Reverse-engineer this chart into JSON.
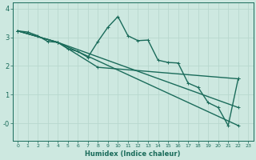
{
  "xlabel": "Humidex (Indice chaleur)",
  "bg_color": "#cde8e0",
  "grid_color": "#b8d8cf",
  "line_color": "#1a6b5a",
  "xlim": [
    -0.5,
    23.5
  ],
  "ylim": [
    -0.6,
    4.2
  ],
  "yticks": [
    0,
    1,
    2,
    3,
    4
  ],
  "ytick_labels": [
    "-0",
    "1",
    "2",
    "3",
    "4"
  ],
  "xticks": [
    0,
    1,
    2,
    3,
    4,
    5,
    6,
    7,
    8,
    9,
    10,
    11,
    12,
    13,
    14,
    15,
    16,
    17,
    18,
    19,
    20,
    21,
    22,
    23
  ],
  "series": [
    {
      "x": [
        0,
        1,
        2,
        3,
        4,
        5,
        6,
        7,
        8,
        9,
        10,
        11,
        12,
        13,
        14,
        15,
        16,
        17,
        18,
        19,
        20,
        21,
        22
      ],
      "y": [
        3.22,
        3.18,
        3.05,
        2.85,
        2.82,
        2.6,
        2.5,
        2.3,
        2.85,
        3.35,
        3.72,
        3.05,
        2.88,
        2.9,
        2.2,
        2.12,
        2.1,
        1.4,
        1.25,
        0.72,
        0.55,
        -0.08,
        1.55
      ]
    },
    {
      "x": [
        0,
        4,
        22
      ],
      "y": [
        3.22,
        2.82,
        -0.08
      ]
    },
    {
      "x": [
        0,
        4,
        22
      ],
      "y": [
        3.22,
        2.82,
        0.55
      ]
    },
    {
      "comment": "triangle line: 0 -> 8 -> 22",
      "x": [
        0,
        4,
        8,
        22
      ],
      "y": [
        3.22,
        2.82,
        1.95,
        1.55
      ]
    }
  ],
  "line_width": 1.0,
  "marker": "+"
}
